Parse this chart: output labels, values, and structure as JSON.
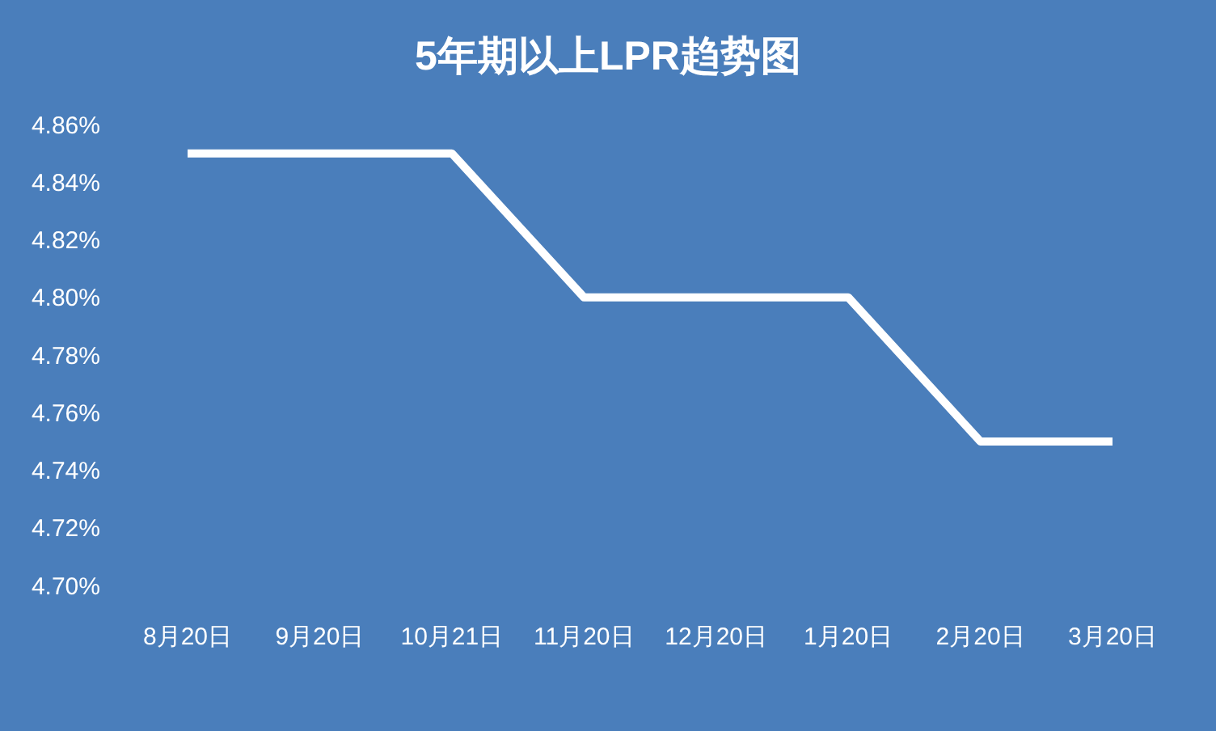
{
  "chart_data": {
    "type": "line",
    "title": "5年期以上LPR趋势图",
    "categories": [
      "8月20日",
      "9月20日",
      "10月21日",
      "11月20日",
      "12月20日",
      "1月20日",
      "2月20日",
      "3月20日"
    ],
    "series": [
      {
        "color": "#ffffff",
        "values": [
          4.85,
          4.85,
          4.85,
          4.8,
          4.8,
          4.8,
          4.75,
          4.75
        ]
      }
    ],
    "ylim": [
      4.7,
      4.86
    ],
    "yticks": [
      {
        "value": 4.7,
        "label": "4.70%"
      },
      {
        "value": 4.72,
        "label": "4.72%"
      },
      {
        "value": 4.74,
        "label": "4.74%"
      },
      {
        "value": 4.76,
        "label": "4.76%"
      },
      {
        "value": 4.78,
        "label": "4.78%"
      },
      {
        "value": 4.8,
        "label": "4.80%"
      },
      {
        "value": 4.82,
        "label": "4.82%"
      },
      {
        "value": 4.84,
        "label": "4.84%"
      },
      {
        "value": 4.86,
        "label": "4.86%"
      }
    ],
    "grid": false,
    "legend": false,
    "marker": "none",
    "line_style": "solid"
  }
}
